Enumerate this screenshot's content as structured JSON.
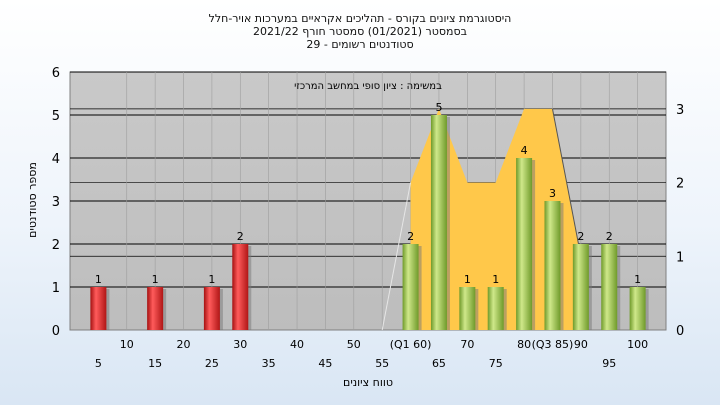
{
  "chart_data": {
    "type": "bar",
    "title": {
      "line1": "היסטוגרמת ציונים בקורס - תהליכים אקראיים במערכות אויר-חלל",
      "line2": "בסמסטר  (01/2021)  סמסטר חורף 2021/22",
      "line3": "סטודנטים רשומים - 29"
    },
    "annotation": "במשימה : ציון סופי במחשב המרכזי",
    "xlabel": "טווח ציונים",
    "ylabel": "מספר סטודנטים",
    "ylim": [
      0,
      6
    ],
    "y2lim": [
      0,
      3.5
    ],
    "yticks": [
      0,
      1,
      2,
      3,
      4,
      5,
      6
    ],
    "y2ticks": [
      0,
      1,
      2,
      3
    ],
    "grid": true,
    "x_tick_labels_upper": [
      "10",
      "20",
      "30",
      "40",
      "50",
      "(Q1 60)",
      "70",
      "80",
      "(Q3 85)",
      "90",
      "100"
    ],
    "x_tick_labels_lower": [
      "5",
      "15",
      "25",
      "35",
      "45",
      "55",
      "65",
      "75",
      "95"
    ],
    "bars": [
      {
        "x": 5,
        "value": 1,
        "color": "red"
      },
      {
        "x": 15,
        "value": 1,
        "color": "red"
      },
      {
        "x": 25,
        "value": 1,
        "color": "red"
      },
      {
        "x": 30,
        "value": 2,
        "color": "red"
      },
      {
        "x": 60,
        "value": 2,
        "color": "green"
      },
      {
        "x": 65,
        "value": 5,
        "color": "green"
      },
      {
        "x": 70,
        "value": 1,
        "color": "green"
      },
      {
        "x": 75,
        "value": 1,
        "color": "green"
      },
      {
        "x": 80,
        "value": 4,
        "color": "green"
      },
      {
        "x": 85,
        "value": 3,
        "color": "green"
      },
      {
        "x": 90,
        "value": 2,
        "color": "green"
      },
      {
        "x": 95,
        "value": 2,
        "color": "green"
      },
      {
        "x": 100,
        "value": 1,
        "color": "green"
      }
    ],
    "area": {
      "x": [
        60,
        65,
        70,
        75,
        80,
        85,
        90
      ],
      "y2": [
        2,
        3,
        2,
        2,
        3,
        3,
        1
      ]
    },
    "colors": {
      "red_bar": "#dc2a2a",
      "green_bar": "#9cc24a",
      "area_fill": "#ffc84a",
      "plot_bg": "#c0c0c0"
    }
  }
}
